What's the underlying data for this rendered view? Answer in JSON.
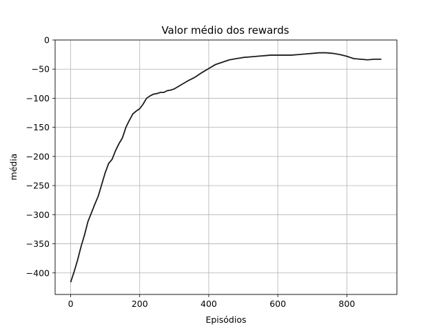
{
  "chart_data": {
    "type": "line",
    "title": "Valor médio dos rewards",
    "xlabel": "Episódios",
    "ylabel": "média",
    "xlim": [
      -45,
      945
    ],
    "ylim": [
      -437,
      0
    ],
    "xticks": [
      0,
      200,
      400,
      600,
      800
    ],
    "xtick_labels": [
      "0",
      "200",
      "400",
      "600",
      "800"
    ],
    "yticks": [
      0,
      -50,
      -100,
      -150,
      -200,
      -250,
      -300,
      -350,
      -400
    ],
    "ytick_labels": [
      "0",
      "−50",
      "−100",
      "−150",
      "−200",
      "−250",
      "−300",
      "−350",
      "−400"
    ],
    "grid": true,
    "line_color": "#1a1a1a",
    "series": [
      {
        "x": [
          0,
          10,
          20,
          30,
          40,
          50,
          60,
          70,
          80,
          90,
          100,
          110,
          120,
          130,
          140,
          150,
          160,
          170,
          180,
          190,
          200,
          210,
          220,
          230,
          240,
          250,
          260,
          270,
          280,
          290,
          300,
          320,
          340,
          360,
          380,
          400,
          420,
          440,
          460,
          480,
          500,
          520,
          540,
          560,
          580,
          600,
          620,
          640,
          660,
          680,
          700,
          720,
          740,
          760,
          780,
          800,
          820,
          840,
          860,
          880,
          900
        ],
        "y": [
          -416,
          -398,
          -378,
          -355,
          -335,
          -312,
          -297,
          -282,
          -268,
          -248,
          -228,
          -212,
          -205,
          -190,
          -178,
          -168,
          -150,
          -138,
          -127,
          -122,
          -118,
          -110,
          -100,
          -96,
          -93,
          -92,
          -90,
          -90,
          -87,
          -86,
          -84,
          -77,
          -70,
          -64,
          -56,
          -49,
          -42,
          -38,
          -34,
          -32,
          -30,
          -29,
          -28,
          -27,
          -26,
          -26,
          -26,
          -26,
          -25,
          -24,
          -23,
          -22,
          -22,
          -23,
          -25,
          -28,
          -32,
          -33,
          -34,
          -33,
          -33
        ]
      }
    ]
  }
}
